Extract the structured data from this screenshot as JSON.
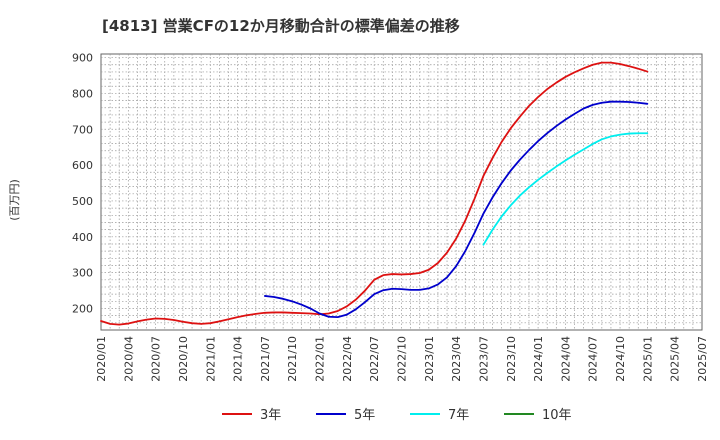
{
  "chart_data": {
    "type": "line",
    "title": "[4813]  営業CFの12か月移動合計の標準偏差の推移",
    "ylabel": "(百万円)",
    "xlabel": "",
    "ylim": [
      140,
      910
    ],
    "yticks": [
      200,
      300,
      400,
      500,
      600,
      700,
      800,
      900
    ],
    "xlim": [
      "2020/01",
      "2025/07"
    ],
    "xticks": [
      "2020/01",
      "2020/04",
      "2020/07",
      "2020/10",
      "2021/01",
      "2021/04",
      "2021/07",
      "2021/10",
      "2022/01",
      "2022/04",
      "2022/07",
      "2022/10",
      "2023/01",
      "2023/04",
      "2023/07",
      "2023/10",
      "2024/01",
      "2024/04",
      "2024/07",
      "2024/10",
      "2025/01",
      "2025/04",
      "2025/07"
    ],
    "grid": true,
    "legend": "bottom",
    "series": [
      {
        "name": "3年",
        "color": "#dd1111",
        "points": [
          [
            "2020/01",
            165
          ],
          [
            "2020/02",
            157
          ],
          [
            "2020/03",
            155
          ],
          [
            "2020/04",
            158
          ],
          [
            "2020/05",
            164
          ],
          [
            "2020/06",
            169
          ],
          [
            "2020/07",
            172
          ],
          [
            "2020/08",
            171
          ],
          [
            "2020/09",
            168
          ],
          [
            "2020/10",
            163
          ],
          [
            "2020/11",
            159
          ],
          [
            "2020/12",
            157
          ],
          [
            "2021/01",
            159
          ],
          [
            "2021/02",
            164
          ],
          [
            "2021/03",
            170
          ],
          [
            "2021/04",
            176
          ],
          [
            "2021/05",
            181
          ],
          [
            "2021/06",
            185
          ],
          [
            "2021/07",
            188
          ],
          [
            "2021/08",
            189
          ],
          [
            "2021/09",
            189
          ],
          [
            "2021/10",
            188
          ],
          [
            "2021/11",
            187
          ],
          [
            "2021/12",
            186
          ],
          [
            "2022/01",
            184
          ],
          [
            "2022/02",
            186
          ],
          [
            "2022/03",
            193
          ],
          [
            "2022/04",
            206
          ],
          [
            "2022/05",
            225
          ],
          [
            "2022/06",
            250
          ],
          [
            "2022/07",
            280
          ],
          [
            "2022/08",
            293
          ],
          [
            "2022/09",
            296
          ],
          [
            "2022/10",
            295
          ],
          [
            "2022/11",
            296
          ],
          [
            "2022/12",
            299
          ],
          [
            "2023/01",
            308
          ],
          [
            "2023/02",
            327
          ],
          [
            "2023/03",
            356
          ],
          [
            "2023/04",
            395
          ],
          [
            "2023/05",
            445
          ],
          [
            "2023/06",
            505
          ],
          [
            "2023/07",
            570
          ],
          [
            "2023/08",
            620
          ],
          [
            "2023/09",
            665
          ],
          [
            "2023/10",
            703
          ],
          [
            "2023/11",
            735
          ],
          [
            "2023/12",
            765
          ],
          [
            "2024/01",
            790
          ],
          [
            "2024/02",
            812
          ],
          [
            "2024/03",
            830
          ],
          [
            "2024/04",
            846
          ],
          [
            "2024/05",
            859
          ],
          [
            "2024/06",
            870
          ],
          [
            "2024/07",
            880
          ],
          [
            "2024/08",
            886
          ],
          [
            "2024/09",
            886
          ],
          [
            "2024/10",
            882
          ],
          [
            "2024/11",
            876
          ],
          [
            "2024/12",
            869
          ],
          [
            "2025/01",
            861
          ]
        ]
      },
      {
        "name": "5年",
        "color": "#0000cc",
        "points": [
          [
            "2021/07",
            235
          ],
          [
            "2021/08",
            232
          ],
          [
            "2021/09",
            227
          ],
          [
            "2021/10",
            220
          ],
          [
            "2021/11",
            211
          ],
          [
            "2021/12",
            200
          ],
          [
            "2022/01",
            186
          ],
          [
            "2022/02",
            177
          ],
          [
            "2022/03",
            176
          ],
          [
            "2022/04",
            183
          ],
          [
            "2022/05",
            198
          ],
          [
            "2022/06",
            218
          ],
          [
            "2022/07",
            240
          ],
          [
            "2022/08",
            251
          ],
          [
            "2022/09",
            255
          ],
          [
            "2022/10",
            254
          ],
          [
            "2022/11",
            252
          ],
          [
            "2022/12",
            252
          ],
          [
            "2023/01",
            256
          ],
          [
            "2023/02",
            267
          ],
          [
            "2023/03",
            287
          ],
          [
            "2023/04",
            318
          ],
          [
            "2023/05",
            360
          ],
          [
            "2023/06",
            410
          ],
          [
            "2023/07",
            465
          ],
          [
            "2023/08",
            510
          ],
          [
            "2023/09",
            550
          ],
          [
            "2023/10",
            585
          ],
          [
            "2023/11",
            615
          ],
          [
            "2023/12",
            642
          ],
          [
            "2024/01",
            667
          ],
          [
            "2024/02",
            689
          ],
          [
            "2024/03",
            709
          ],
          [
            "2024/04",
            727
          ],
          [
            "2024/05",
            743
          ],
          [
            "2024/06",
            758
          ],
          [
            "2024/07",
            768
          ],
          [
            "2024/08",
            774
          ],
          [
            "2024/09",
            777
          ],
          [
            "2024/10",
            777
          ],
          [
            "2024/11",
            776
          ],
          [
            "2024/12",
            774
          ],
          [
            "2025/01",
            771
          ]
        ]
      },
      {
        "name": "7年",
        "color": "#00eeee",
        "points": [
          [
            "2023/07",
            378
          ],
          [
            "2023/08",
            420
          ],
          [
            "2023/09",
            457
          ],
          [
            "2023/10",
            488
          ],
          [
            "2023/11",
            515
          ],
          [
            "2023/12",
            538
          ],
          [
            "2024/01",
            559
          ],
          [
            "2024/02",
            578
          ],
          [
            "2024/03",
            596
          ],
          [
            "2024/04",
            613
          ],
          [
            "2024/05",
            629
          ],
          [
            "2024/06",
            644
          ],
          [
            "2024/07",
            659
          ],
          [
            "2024/08",
            672
          ],
          [
            "2024/09",
            680
          ],
          [
            "2024/10",
            685
          ],
          [
            "2024/11",
            688
          ],
          [
            "2024/12",
            689
          ],
          [
            "2025/01",
            689
          ]
        ]
      },
      {
        "name": "10年",
        "color": "#228822",
        "points": []
      }
    ]
  }
}
